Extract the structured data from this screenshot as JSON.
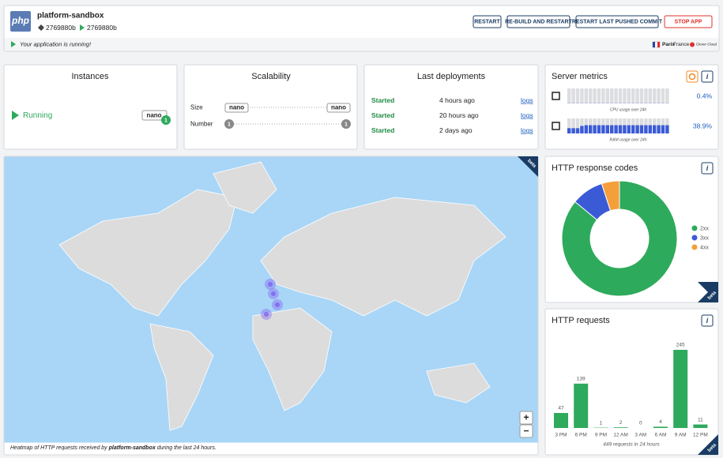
{
  "header": {
    "logo": "php",
    "app_name": "platform-sandbox",
    "commit_deployed": "2769880b",
    "commit_running": "2769880b",
    "buttons": [
      "RESTART",
      "RE-BUILD AND RESTART",
      "RESTART LAST PUSHED COMMIT",
      "STOP APP"
    ],
    "status": "Your application is running!",
    "zone_city": "Paris",
    "zone_country": "France",
    "provider": "Clever Cloud"
  },
  "instances": {
    "title": "Instances",
    "state": "Running",
    "flavor": "nano",
    "count": 1
  },
  "scalability": {
    "title": "Scalability",
    "size_label": "Size",
    "number_label": "Number",
    "size_min": "nano",
    "size_max": "nano",
    "number_min": 1,
    "number_max": 1
  },
  "deployments": {
    "title": "Last deployments",
    "rows": [
      [
        "Started",
        "4 hours ago",
        "logs"
      ],
      [
        "Started",
        "20 hours ago",
        "logs"
      ],
      [
        "Started",
        "2 days ago",
        "logs"
      ]
    ]
  },
  "server_metrics": {
    "title": "Server metrics",
    "cpu_caption": "CPU usage over 24h",
    "cpu_value": "0.4%",
    "ram_caption": "RAM usage over 24h",
    "ram_value": "38.9%",
    "cpu_history": [
      1,
      1,
      1,
      1,
      1,
      1,
      1,
      1,
      1,
      1,
      1,
      1,
      1,
      1,
      1,
      1,
      1,
      1,
      1,
      1,
      1,
      1,
      1,
      1
    ],
    "ram_history": [
      35,
      35,
      35,
      50,
      55,
      55,
      55,
      55,
      55,
      55,
      55,
      55,
      55,
      55,
      55,
      55,
      55,
      55,
      55,
      55,
      55,
      55,
      55,
      55
    ]
  },
  "map": {
    "badge": "beta",
    "caption_before": "Heatmap of HTTP requests received by ",
    "caption_app": "platform-sandbox",
    "caption_after": " during the last 24 hours.",
    "zoom_in": "+",
    "zoom_out": "−"
  },
  "http_response_codes": {
    "type": "pie",
    "title": "HTTP response codes",
    "badge": "beta",
    "series": [
      {
        "name": "2xx",
        "color": "#2eaa5c",
        "value": 86
      },
      {
        "name": "3xx",
        "color": "#3b5bd6",
        "value": 9
      },
      {
        "name": "4xx",
        "color": "#f59f3a",
        "value": 5
      }
    ]
  },
  "http_requests": {
    "type": "bar",
    "title": "HTTP requests",
    "badge": "beta",
    "categories": [
      "3 PM",
      "6 PM",
      "9 PM",
      "12 AM",
      "3 AM",
      "6 AM",
      "9 AM",
      "12 PM"
    ],
    "values": [
      47,
      139,
      1,
      2,
      0,
      4,
      245,
      11
    ],
    "color": "#2eaa5c",
    "caption": "449 requests in 24 hours"
  }
}
